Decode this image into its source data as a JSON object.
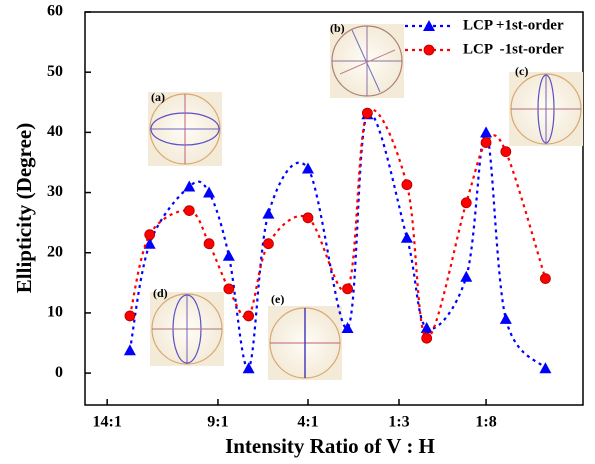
{
  "chart_data": {
    "type": "line",
    "x_label": "Intensity Ratio of V : H",
    "y_label": "Ellipticity (Degree)",
    "x": [
      0,
      1,
      3,
      4,
      5,
      6,
      7,
      9,
      11,
      12,
      14,
      15,
      17,
      18,
      19,
      21
    ],
    "series": [
      {
        "name": "LCP +1st-order",
        "color": "#0000ff",
        "marker": "triangle",
        "values": [
          3.8,
          21.5,
          31,
          30,
          19.5,
          0.8,
          26.5,
          34,
          7.5,
          43,
          22.5,
          7.5,
          16,
          40,
          9,
          0.8
        ]
      },
      {
        "name": "LCP  -1st-order",
        "color": "#ff0000",
        "marker": "circle",
        "values": [
          9.5,
          23,
          27,
          21.5,
          14,
          9.5,
          21.5,
          25.8,
          14,
          43.2,
          31.3,
          5.8,
          28.3,
          38.3,
          36.8,
          15.7
        ]
      }
    ],
    "xlim": [
      -2.27,
      22.9
    ],
    "ylim": [
      -5.3,
      60
    ],
    "xticks": [
      {
        "value": -1.15,
        "label": "14:1"
      },
      {
        "value": 4.45,
        "label": "9:1"
      },
      {
        "value": 9,
        "label": "4:1"
      },
      {
        "value": 13.6,
        "label": "1:3"
      },
      {
        "value": 18,
        "label": "1:8"
      }
    ],
    "yticks": [
      0,
      10,
      20,
      30,
      40,
      50,
      60
    ],
    "legend": "top-right",
    "annotations": [
      "(a)",
      "(b)",
      "(c)",
      "(d)",
      "(e)"
    ]
  }
}
